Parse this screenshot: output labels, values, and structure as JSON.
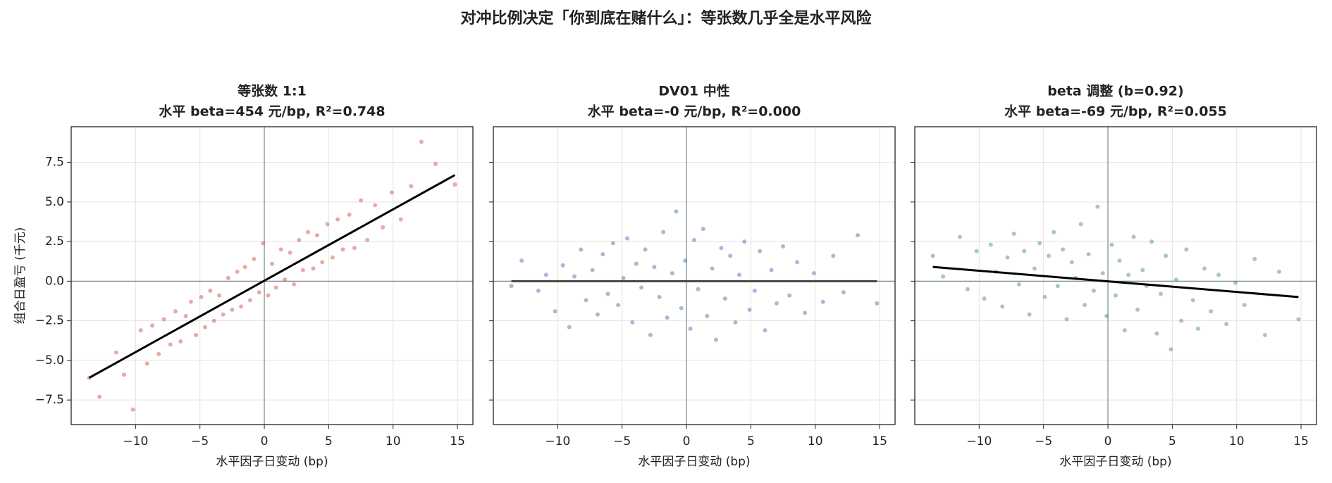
{
  "title": "对冲比例决定「你到底在赌什么」：等张数几乎全是水平风险",
  "chart_data": [
    {
      "type": "scatter",
      "title": "等张数 1:1",
      "subtitle": "水平 beta=454 元/bp, R²=0.748",
      "xlabel": "水平因子日变动 (bp)",
      "ylabel": "组合日盈亏 (千元)",
      "color": "#c8453a",
      "fit_color": "#000000",
      "x": [
        -13.6,
        -12.8,
        -11.5,
        -10.9,
        -10.2,
        -9.6,
        -9.1,
        -8.7,
        -8.2,
        -7.8,
        -7.3,
        -6.9,
        -6.5,
        -6.1,
        -5.7,
        -5.3,
        -4.9,
        -4.6,
        -4.2,
        -3.9,
        -3.5,
        -3.2,
        -2.8,
        -2.5,
        -2.1,
        -1.8,
        -1.5,
        -1.1,
        -0.8,
        -0.4,
        -0.1,
        0.3,
        0.6,
        0.9,
        1.3,
        1.6,
        2.0,
        2.3,
        2.7,
        3.0,
        3.4,
        3.8,
        4.1,
        4.5,
        4.9,
        5.3,
        5.7,
        6.1,
        6.6,
        7.0,
        7.5,
        8.0,
        8.6,
        9.2,
        9.9,
        10.6,
        11.4,
        12.2,
        13.3,
        14.8
      ],
      "y": [
        -6.1,
        -7.3,
        -4.5,
        -5.9,
        -8.1,
        -3.1,
        -5.2,
        -2.8,
        -4.6,
        -2.4,
        -4.0,
        -1.9,
        -3.8,
        -2.2,
        -1.3,
        -3.4,
        -1.0,
        -2.9,
        -0.6,
        -2.5,
        -0.9,
        -2.1,
        0.2,
        -1.8,
        0.6,
        -1.6,
        0.9,
        -1.2,
        1.4,
        -0.7,
        2.4,
        -0.9,
        1.1,
        -0.4,
        2.0,
        0.1,
        1.8,
        -0.2,
        2.6,
        0.7,
        3.1,
        0.8,
        2.9,
        1.2,
        3.6,
        1.5,
        3.9,
        2.0,
        4.2,
        2.1,
        5.1,
        2.6,
        4.8,
        3.4,
        5.6,
        3.9,
        6.0,
        8.8,
        7.4,
        6.1
      ],
      "fit": {
        "x": [
          -13.6,
          14.8
        ],
        "y": [
          -6.1,
          6.7
        ]
      },
      "hline": 0,
      "vline": 0,
      "xlim": [
        -15.0,
        16.2
      ],
      "ylim": [
        -9.05,
        9.75
      ],
      "xticks": [
        {
          "value": -10,
          "label": "−10"
        },
        {
          "value": -5,
          "label": "−5"
        },
        0,
        5,
        10,
        15
      ],
      "yticks": [
        {
          "value": -7.5,
          "label": "−7.5"
        },
        {
          "value": -5,
          "label": "−5.0"
        },
        {
          "value": -2.5,
          "label": "−2.5"
        },
        {
          "value": 0,
          "label": "0.0"
        },
        2.5,
        {
          "value": 5,
          "label": "5.0"
        },
        7.5
      ],
      "grid": true
    },
    {
      "type": "scatter",
      "title": "DV01 中性",
      "subtitle": "水平 beta=-0 元/bp, R²=0.000",
      "xlabel": "水平因子日变动 (bp)",
      "color": "#3a66a8",
      "fit_color": "#444444",
      "x": [
        -13.6,
        -12.8,
        -11.5,
        -10.9,
        -10.2,
        -9.6,
        -9.1,
        -8.7,
        -8.2,
        -7.8,
        -7.3,
        -6.9,
        -6.5,
        -6.1,
        -5.7,
        -5.3,
        -4.9,
        -4.6,
        -4.2,
        -3.9,
        -3.5,
        -3.2,
        -2.8,
        -2.5,
        -2.1,
        -1.8,
        -1.5,
        -1.1,
        -0.8,
        -0.4,
        -0.1,
        0.3,
        0.6,
        0.9,
        1.3,
        1.6,
        2.0,
        2.3,
        2.7,
        3.0,
        3.4,
        3.8,
        4.1,
        4.5,
        4.9,
        5.3,
        5.7,
        6.1,
        6.6,
        7.0,
        7.5,
        8.0,
        8.6,
        9.2,
        9.9,
        10.6,
        11.4,
        12.2,
        13.3,
        14.8
      ],
      "y": [
        -0.3,
        1.3,
        -0.6,
        0.4,
        -1.9,
        1.0,
        -2.9,
        0.3,
        2.0,
        -1.2,
        0.7,
        -2.1,
        1.7,
        -0.8,
        2.4,
        -1.5,
        0.2,
        2.7,
        -2.6,
        1.1,
        -0.4,
        2.0,
        -3.4,
        0.9,
        -1.0,
        3.1,
        -2.3,
        0.5,
        4.4,
        -1.7,
        1.3,
        -3.0,
        2.6,
        -0.5,
        3.3,
        -2.2,
        0.8,
        -3.7,
        2.1,
        -1.1,
        1.6,
        -2.6,
        0.4,
        2.5,
        -1.8,
        -0.6,
        1.9,
        -3.1,
        0.7,
        -1.4,
        2.2,
        -0.9,
        1.2,
        -2.0,
        0.5,
        -1.3,
        1.6,
        -0.7,
        2.9,
        -1.4
      ],
      "fit": {
        "x": [
          -13.6,
          14.8
        ],
        "y": [
          0.0,
          0.0
        ]
      },
      "hline": 0,
      "vline": 0,
      "xlim": [
        -15.0,
        16.2
      ],
      "xticks": [
        {
          "value": -10,
          "label": "−10"
        },
        {
          "value": -5,
          "label": "−5"
        },
        0,
        5,
        10,
        15
      ],
      "grid": true
    },
    {
      "type": "scatter",
      "title": "beta 调整 (b=0.92)",
      "subtitle": "水平 beta=-69 元/bp, R²=0.055",
      "xlabel": "水平因子日变动 (bp)",
      "color": "#3a8a60",
      "fit_color": "#000000",
      "x": [
        -13.6,
        -12.8,
        -11.5,
        -10.9,
        -10.2,
        -9.6,
        -9.1,
        -8.7,
        -8.2,
        -7.8,
        -7.3,
        -6.9,
        -6.5,
        -6.1,
        -5.7,
        -5.3,
        -4.9,
        -4.6,
        -4.2,
        -3.9,
        -3.5,
        -3.2,
        -2.8,
        -2.5,
        -2.1,
        -1.8,
        -1.5,
        -1.1,
        -0.8,
        -0.4,
        -0.1,
        0.3,
        0.6,
        0.9,
        1.3,
        1.6,
        2.0,
        2.3,
        2.7,
        3.0,
        3.4,
        3.8,
        4.1,
        4.5,
        4.9,
        5.3,
        5.7,
        6.1,
        6.6,
        7.0,
        7.5,
        8.0,
        8.6,
        9.2,
        9.9,
        10.6,
        11.4,
        12.2,
        13.3,
        14.8
      ],
      "y": [
        1.6,
        0.3,
        2.8,
        -0.5,
        1.9,
        -1.1,
        2.3,
        0.6,
        -1.6,
        1.5,
        3.0,
        -0.2,
        1.9,
        -2.1,
        0.8,
        2.4,
        -1.0,
        1.6,
        3.1,
        -0.3,
        2.0,
        -2.4,
        1.2,
        0.2,
        3.6,
        -1.5,
        1.7,
        -0.6,
        4.7,
        0.5,
        -2.2,
        2.3,
        -0.9,
        1.3,
        -3.1,
        0.4,
        2.8,
        -1.8,
        0.7,
        -0.3,
        2.5,
        -3.3,
        -0.8,
        1.6,
        -4.3,
        0.1,
        -2.5,
        2.0,
        -1.2,
        -3.0,
        0.8,
        -1.9,
        0.4,
        -2.7,
        -0.1,
        -1.5,
        1.4,
        -3.4,
        0.6,
        -2.4
      ],
      "fit": {
        "x": [
          -13.6,
          14.8
        ],
        "y": [
          0.9,
          -1.0
        ]
      },
      "hline": 0,
      "vline": 0,
      "xlim": [
        -15.0,
        16.2
      ],
      "xticks": [
        {
          "value": -10,
          "label": "−10"
        },
        {
          "value": -5,
          "label": "−5"
        },
        0,
        5,
        10,
        15
      ],
      "grid": true
    }
  ]
}
